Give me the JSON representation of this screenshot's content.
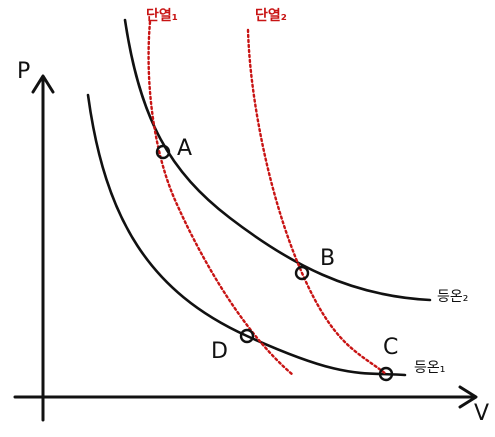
{
  "axes": {
    "y_label": "P",
    "x_label": "V"
  },
  "curves": [
    {
      "label": "단열₁"
    },
    {
      "label": "단열₂"
    },
    {
      "label": "등온₂"
    },
    {
      "label": "등온₁"
    }
  ],
  "points": [
    {
      "label": "A"
    },
    {
      "label": "B"
    },
    {
      "label": "C"
    },
    {
      "label": "D"
    }
  ]
}
